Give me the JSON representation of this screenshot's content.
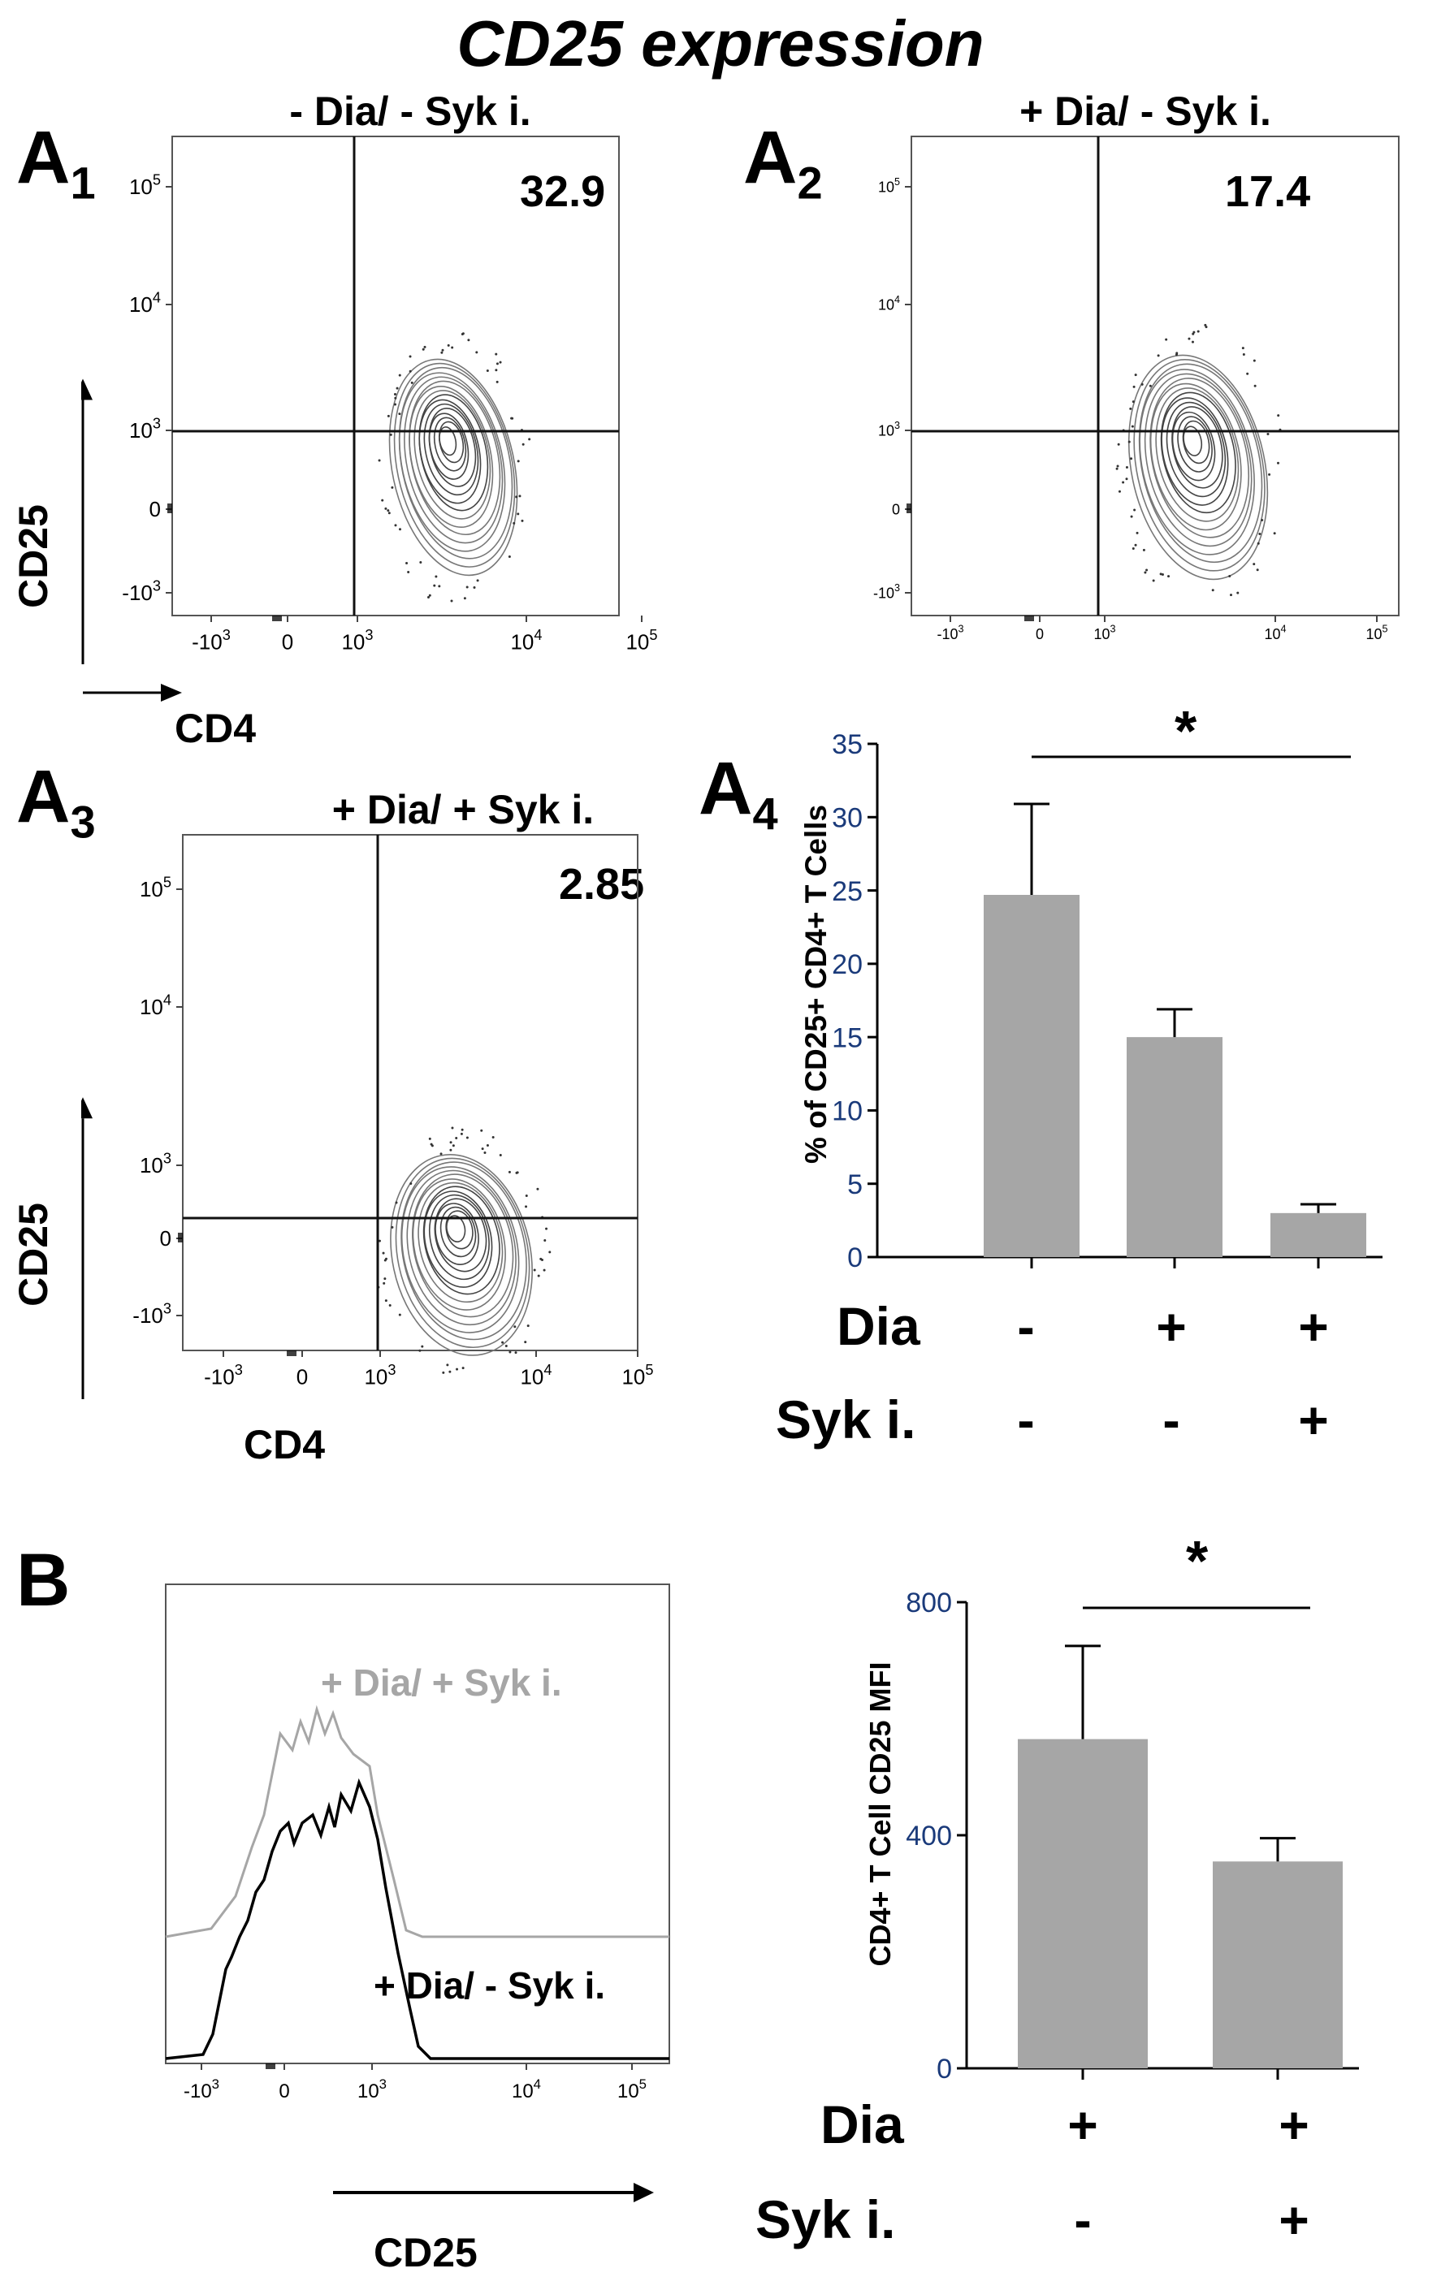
{
  "figure": {
    "title": "CD25 expression",
    "panel_labels": {
      "a1": "A",
      "a1_sub": "1",
      "a2": "A",
      "a2_sub": "2",
      "a3": "A",
      "a3_sub": "3",
      "a4": "A",
      "a4_sub": "4",
      "b": "B"
    }
  },
  "flow_plots": [
    {
      "title": "- Dia/ - Syk i.",
      "gate_value": "32.9",
      "xlabel": "CD4",
      "ylabel": "CD25"
    },
    {
      "title": "+ Dia/ - Syk i.",
      "gate_value": "17.4"
    },
    {
      "title": "+ Dia/ + Syk i.",
      "gate_value": "2.85",
      "xlabel": "CD4",
      "ylabel": "CD25"
    }
  ],
  "tick_labels": {
    "y": [
      "10^5",
      "10^4",
      "10^3",
      "0",
      "-10^3"
    ],
    "x": [
      "-10^3",
      "0",
      "10^3",
      "10^4",
      "10^5"
    ]
  },
  "histogram": {
    "xlabel": "CD25",
    "series": [
      {
        "name": "+ Dia/ + Syk i.",
        "color": "#a6a6a6"
      },
      {
        "name": "+ Dia/ - Syk i.",
        "color": "#000000"
      }
    ],
    "x_ticks": [
      "-10^3",
      "0",
      "10^3",
      "10^4",
      "10^5"
    ]
  },
  "chart_data": [
    {
      "type": "bar",
      "panel": "A4",
      "categories": [
        "- Dia / - Syk i.",
        "+ Dia / - Syk i.",
        "+ Dia / + Syk i."
      ],
      "values": [
        24.7,
        15.0,
        3.0
      ],
      "errors": [
        6.2,
        1.9,
        0.6
      ],
      "ylabel": "% of CD25+ CD4+ T Cells",
      "ylim": [
        0,
        35
      ],
      "yticks": [
        0,
        5,
        10,
        15,
        20,
        25,
        30,
        35
      ],
      "bar_color": "#a6a6a6",
      "significance": {
        "from": 0,
        "to": 2,
        "label": "*"
      },
      "conditions": [
        {
          "label": "Dia",
          "signs": [
            "-",
            "+",
            "+"
          ]
        },
        {
          "label": "Syk i.",
          "signs": [
            "-",
            "-",
            "+"
          ]
        }
      ]
    },
    {
      "type": "bar",
      "panel": "B",
      "categories": [
        "+ Dia / - Syk i.",
        "+ Dia / + Syk i."
      ],
      "values": [
        565,
        355
      ],
      "errors": [
        160,
        40
      ],
      "ylabel": "CD4+ T Cell CD25 MFI",
      "ylim": [
        0,
        800
      ],
      "yticks": [
        0,
        400,
        800
      ],
      "bar_color": "#a6a6a6",
      "significance": {
        "from": 0,
        "to": 1,
        "label": "*"
      },
      "conditions": [
        {
          "label": "Dia",
          "signs": [
            "+",
            "+"
          ]
        },
        {
          "label": "Syk i.",
          "signs": [
            "-",
            "+"
          ]
        }
      ]
    }
  ]
}
